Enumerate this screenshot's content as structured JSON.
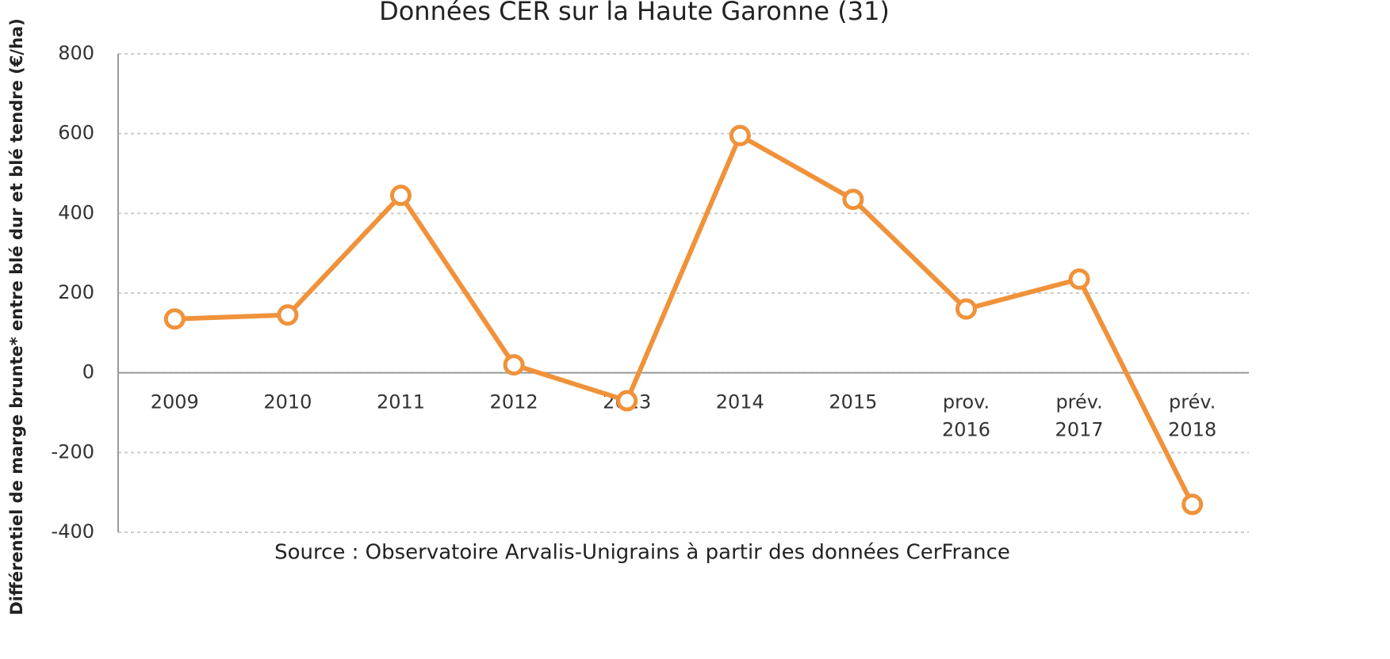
{
  "chart_data": {
    "type": "line",
    "title": "Données CER sur la Haute Garonne (31)",
    "y_label": "Différentiel de marge brunte* entre blé dur et blé tendre (€/ha)",
    "source": "Source : Observatoire Arvalis-Unigrains à partir des données CerFrance",
    "categories": [
      "2009",
      "2010",
      "2011",
      "2012",
      "2013",
      "2014",
      "2015",
      "prov. 2016",
      "prév. 2017",
      "prév. 2018"
    ],
    "series": [
      {
        "name": "Différentiel",
        "color": "#f0923a",
        "values": [
          135,
          145,
          445,
          20,
          -70,
          595,
          435,
          160,
          235,
          -330
        ]
      }
    ],
    "ylim": [
      -400,
      800
    ],
    "yticks": [
      -400,
      -200,
      0,
      200,
      400,
      600,
      800
    ],
    "grid": true
  }
}
